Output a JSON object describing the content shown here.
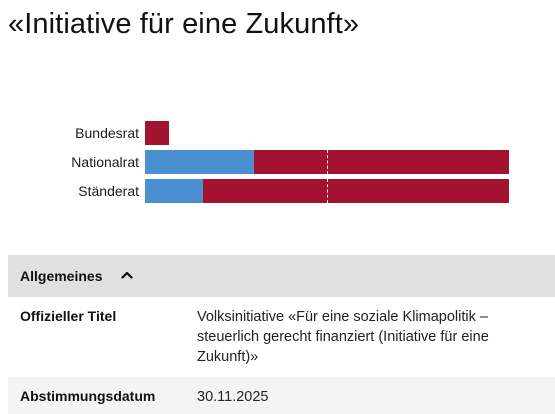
{
  "page": {
    "title": "«Initiative für eine Zukunft»"
  },
  "colors": {
    "ja": "#4a8fcf",
    "nein": "#a3122f",
    "accordion_bg": "#e0e0e0",
    "row_alt_bg": "#f4f4f4"
  },
  "parliament_results": {
    "bars": [
      {
        "label": "Bundesrat",
        "ja_share": 0.0,
        "nein_share": 0.066,
        "scale": "partial"
      },
      {
        "label": "Nationalrat",
        "ja_share": 0.3,
        "nein_share": 0.7
      },
      {
        "label": "Ständerat",
        "ja_share": 0.16,
        "nein_share": 0.84
      }
    ],
    "majority_threshold": 0.5
  },
  "accordion": {
    "title": "Allgemeines",
    "icon": "chevron-up-icon",
    "expanded": true
  },
  "details": {
    "official_title": {
      "label": "Offizieller Titel",
      "value": "Volksinitiative «Für eine soziale Klimapolitik – steuerlich gerecht finanziert (Initiative für eine Zukunft)»"
    },
    "vote_date": {
      "label": "Abstimmungsdatum",
      "value": "30.11.2025"
    }
  }
}
